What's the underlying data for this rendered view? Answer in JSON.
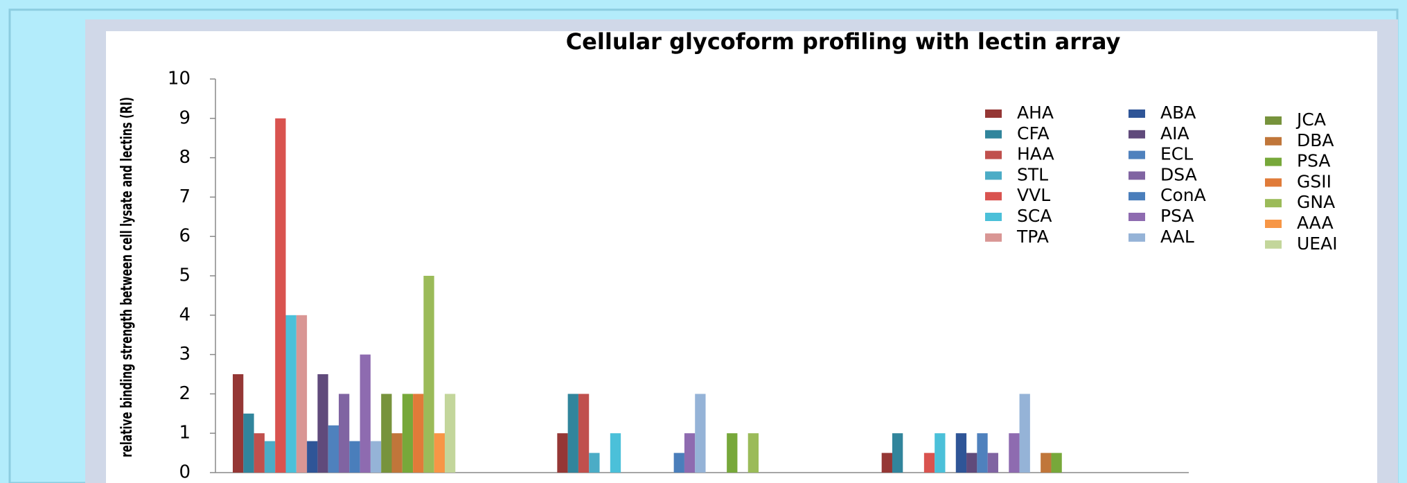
{
  "chart_data": {
    "type": "bar",
    "title": "Cellular glycoform profiling with lectin array",
    "y_label": "relative binding strength between cell lysate and lectins (RI)",
    "categories": [
      null,
      null,
      null
    ],
    "ylim": [
      0,
      10
    ],
    "yticks": [
      0,
      1,
      2,
      3,
      4,
      5,
      6,
      7,
      8,
      9,
      10
    ],
    "grid": false,
    "series": [
      {
        "name": "AHA",
        "color": "#953735",
        "values": [
          2.5,
          1,
          0.5
        ]
      },
      {
        "name": "CFA",
        "color": "#31859c",
        "values": [
          1.5,
          2,
          1
        ]
      },
      {
        "name": "HAA",
        "color": "#c0504d",
        "values": [
          1,
          2,
          0
        ]
      },
      {
        "name": "STL",
        "color": "#4bacc6",
        "values": [
          0.8,
          0.5,
          0
        ]
      },
      {
        "name": "VVL",
        "color": "#d9534f",
        "values": [
          9,
          0,
          0.5
        ]
      },
      {
        "name": "SCA",
        "color": "#4bc0d9",
        "values": [
          4,
          1,
          1
        ]
      },
      {
        "name": "TPA",
        "color": "#d99694",
        "values": [
          4,
          0,
          0
        ]
      },
      {
        "name": "ABA",
        "color": "#2f5597",
        "values": [
          0.8,
          0,
          1
        ]
      },
      {
        "name": "AIA",
        "color": "#604a7b",
        "values": [
          2.5,
          0,
          0.5
        ]
      },
      {
        "name": "ECL",
        "color": "#4f81bd",
        "values": [
          1.2,
          0,
          1
        ]
      },
      {
        "name": "DSA",
        "color": "#8064a2",
        "values": [
          2,
          0,
          0.5
        ]
      },
      {
        "name": "ConA",
        "color": "#4a7ebb",
        "values": [
          0.8,
          0.5,
          0
        ]
      },
      {
        "name": "PSA",
        "color": "#8e6bb0",
        "values": [
          3,
          1,
          1
        ]
      },
      {
        "name": "AAL",
        "color": "#95b3d7",
        "values": [
          0.8,
          2,
          2
        ]
      },
      {
        "name": "JCA",
        "color": "#77933c",
        "values": [
          2,
          0,
          0
        ]
      },
      {
        "name": "DBA",
        "color": "#c0763a",
        "values": [
          1,
          0,
          0.5
        ]
      },
      {
        "name": "PSA",
        "color": "#77a83a",
        "values": [
          2,
          1,
          0.5
        ]
      },
      {
        "name": "GSII",
        "color": "#e07b39",
        "values": [
          2,
          0,
          0
        ]
      },
      {
        "name": "GNA",
        "color": "#9bbb59",
        "values": [
          5,
          1,
          0
        ]
      },
      {
        "name": "AAA",
        "color": "#f79646",
        "values": [
          1,
          0,
          0
        ]
      },
      {
        "name": "UEAI",
        "color": "#c3d69b",
        "values": [
          2,
          0,
          0
        ]
      }
    ]
  }
}
